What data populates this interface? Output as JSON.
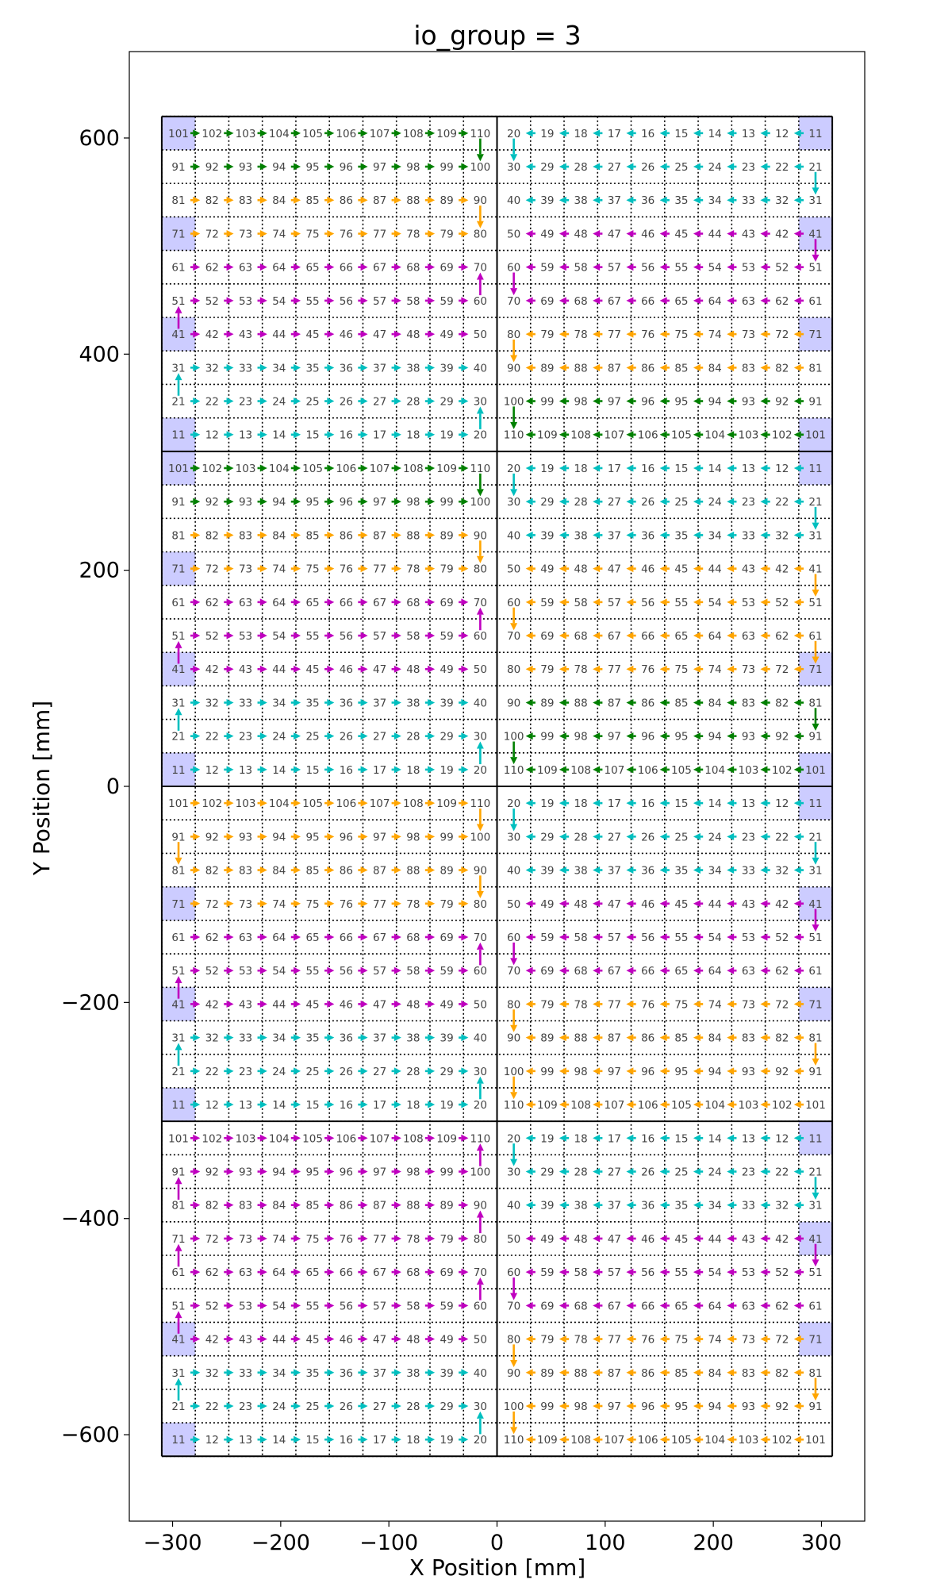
{
  "chart_data": {
    "type": "scatter",
    "title": "io_group = 3",
    "xlabel": "X Position [mm]",
    "ylabel": "Y Position [mm]",
    "xlim": [
      -340,
      340
    ],
    "ylim": [
      -680,
      680
    ],
    "xticks": [
      {
        "value": -300,
        "label": "−300"
      },
      {
        "value": -200,
        "label": "−200"
      },
      {
        "value": -100,
        "label": "−100"
      },
      {
        "value": 0,
        "label": "0"
      },
      {
        "value": 100,
        "label": "100"
      },
      {
        "value": 200,
        "label": "200"
      },
      {
        "value": 300,
        "label": "300"
      }
    ],
    "yticks": [
      {
        "value": 600,
        "label": "600"
      },
      {
        "value": 400,
        "label": "400"
      },
      {
        "value": 200,
        "label": "200"
      },
      {
        "value": 0,
        "label": "0"
      },
      {
        "value": -200,
        "label": "−200"
      },
      {
        "value": -400,
        "label": "−400"
      },
      {
        "value": -600,
        "label": "−600"
      }
    ],
    "colors": {
      "green": "#008000",
      "orange": "#ffa500",
      "cyan": "#00bfbf",
      "magenta": "#bf00bf",
      "box": "#ccccff",
      "grid": "#000000"
    },
    "chip_grid": {
      "x_min": -310,
      "x_max": 310,
      "y_min": -620,
      "y_max": 620,
      "chip_spacing": 31,
      "tile_x_edges": [
        -310,
        0,
        310
      ],
      "tile_y_edges": [
        -620,
        -310,
        0,
        310,
        620
      ]
    },
    "left_column_chip_ids": [
      [
        101,
        102,
        103,
        104,
        105,
        106,
        107,
        108,
        109,
        110
      ],
      [
        91,
        92,
        93,
        94,
        95,
        96,
        97,
        98,
        99,
        100
      ],
      [
        81,
        82,
        83,
        84,
        85,
        86,
        87,
        88,
        89,
        90
      ],
      [
        71,
        72,
        73,
        74,
        75,
        76,
        77,
        78,
        79,
        80
      ],
      [
        61,
        62,
        63,
        64,
        65,
        66,
        67,
        68,
        69,
        70
      ],
      [
        51,
        52,
        53,
        54,
        55,
        56,
        57,
        58,
        59,
        60
      ],
      [
        41,
        42,
        43,
        44,
        45,
        46,
        47,
        48,
        49,
        50
      ],
      [
        31,
        32,
        33,
        34,
        35,
        36,
        37,
        38,
        39,
        40
      ],
      [
        21,
        22,
        23,
        24,
        25,
        26,
        27,
        28,
        29,
        30
      ],
      [
        11,
        12,
        13,
        14,
        15,
        16,
        17,
        18,
        19,
        20
      ]
    ],
    "right_column_chip_ids": [
      [
        20,
        19,
        18,
        17,
        16,
        15,
        14,
        13,
        12,
        11
      ],
      [
        30,
        29,
        28,
        27,
        26,
        25,
        24,
        23,
        22,
        21
      ],
      [
        40,
        39,
        38,
        37,
        36,
        35,
        34,
        33,
        32,
        31
      ],
      [
        50,
        49,
        48,
        47,
        46,
        45,
        44,
        43,
        42,
        41
      ],
      [
        60,
        59,
        58,
        57,
        56,
        55,
        54,
        53,
        52,
        51
      ],
      [
        70,
        69,
        68,
        67,
        66,
        65,
        64,
        63,
        62,
        61
      ],
      [
        80,
        79,
        78,
        77,
        76,
        75,
        74,
        73,
        72,
        71
      ],
      [
        90,
        89,
        88,
        87,
        86,
        85,
        84,
        83,
        82,
        81
      ],
      [
        100,
        99,
        98,
        97,
        96,
        95,
        94,
        93,
        92,
        91
      ],
      [
        110,
        109,
        108,
        107,
        106,
        105,
        104,
        103,
        102,
        101
      ]
    ],
    "tiles": [
      {
        "name": "left-1",
        "col": "left",
        "y_top": 620,
        "row_colors": [
          "green",
          "green",
          "orange",
          "orange",
          "magenta",
          "magenta",
          "magenta",
          "cyan",
          "cyan",
          "cyan"
        ],
        "highlighted": [
          101,
          71,
          41,
          11
        ]
      },
      {
        "name": "right-1",
        "col": "right",
        "y_top": 620,
        "row_colors": [
          "cyan",
          "cyan",
          "cyan",
          "magenta",
          "magenta",
          "magenta",
          "orange",
          "orange",
          "green",
          "green"
        ],
        "highlighted": [
          11,
          41,
          71,
          101
        ]
      },
      {
        "name": "left-2",
        "col": "left",
        "y_top": 310,
        "row_colors": [
          "green",
          "green",
          "orange",
          "orange",
          "magenta",
          "magenta",
          "magenta",
          "cyan",
          "cyan",
          "cyan"
        ],
        "highlighted": [
          101,
          71,
          41,
          11
        ]
      },
      {
        "name": "right-2",
        "col": "right",
        "y_top": 310,
        "row_colors": [
          "cyan",
          "cyan",
          "cyan",
          "orange",
          "orange",
          "orange",
          "orange",
          "green",
          "green",
          "green"
        ],
        "highlighted": [
          11,
          71,
          101
        ]
      },
      {
        "name": "left-3",
        "col": "left",
        "y_top": 0,
        "row_colors": [
          "orange",
          "orange",
          "orange",
          "orange",
          "magenta",
          "magenta",
          "magenta",
          "cyan",
          "cyan",
          "cyan"
        ],
        "highlighted": [
          71,
          41,
          11
        ]
      },
      {
        "name": "right-3",
        "col": "right",
        "y_top": 0,
        "row_colors": [
          "cyan",
          "cyan",
          "cyan",
          "magenta",
          "magenta",
          "magenta",
          "orange",
          "orange",
          "orange",
          "orange"
        ],
        "highlighted": [
          11,
          41,
          71
        ]
      },
      {
        "name": "left-4",
        "col": "left",
        "y_top": -310,
        "row_colors": [
          "magenta",
          "magenta",
          "magenta",
          "magenta",
          "magenta",
          "magenta",
          "magenta",
          "cyan",
          "cyan",
          "cyan"
        ],
        "highlighted": [
          41,
          11
        ]
      },
      {
        "name": "right-4",
        "col": "right",
        "y_top": -310,
        "row_colors": [
          "cyan",
          "cyan",
          "cyan",
          "magenta",
          "magenta",
          "magenta",
          "orange",
          "orange",
          "orange",
          "orange"
        ],
        "highlighted": [
          11,
          41,
          71
        ]
      }
    ]
  }
}
